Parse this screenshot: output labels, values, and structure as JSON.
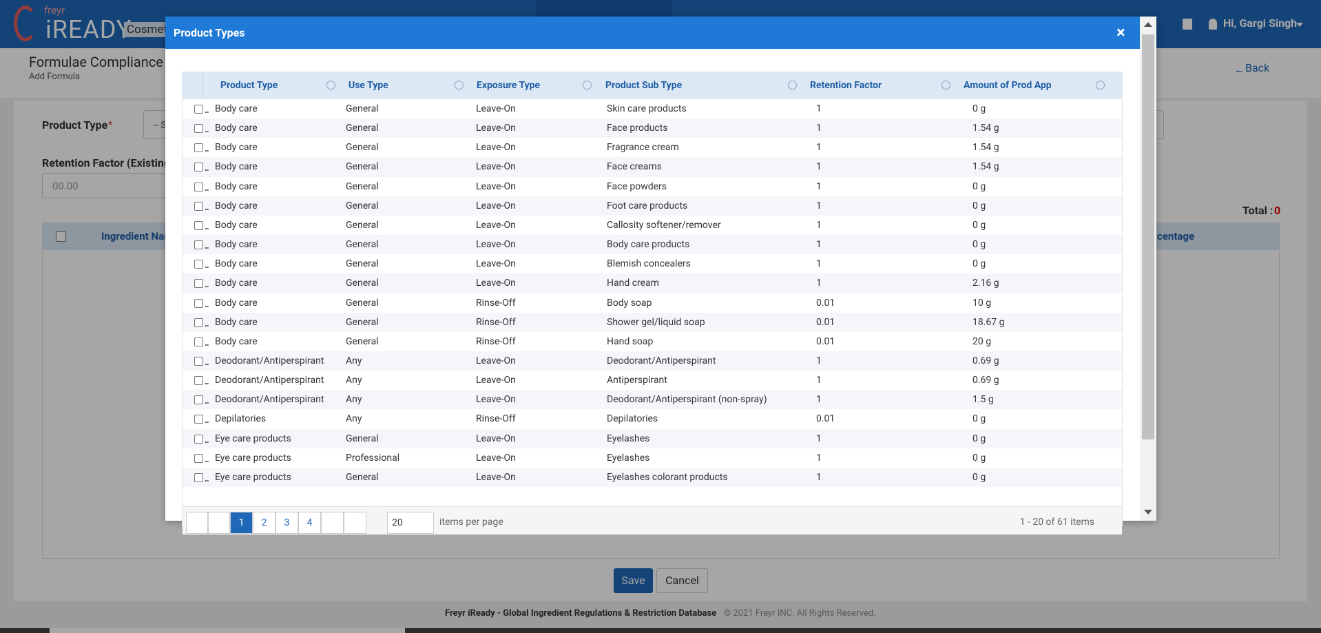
{
  "nav": {
    "brand_small": "freyr",
    "brand": "iREADY",
    "module": "Cosmet",
    "user": "Hi, Gargi Singh"
  },
  "page": {
    "title": "Formulae Compliance",
    "subtitle": "Add Formula",
    "back": "Back",
    "product_type_label": "Product Type",
    "required": "*",
    "product_type_placeholder": "-- S",
    "retention_label": "Retention Factor (Existing",
    "retention_placeholder": "00.00",
    "total_label": "Total :",
    "total_value": "0",
    "columns": [
      "Ingredient Nam",
      "centage"
    ],
    "save": "Save",
    "cancel": "Cancel"
  },
  "footer": {
    "brand": "Freyr iReady - Global Ingredient Regulations & Restriction Database",
    "copyright": "© 2021 Freyr INC. All Rights Reserved."
  },
  "modal": {
    "title": "Product Types",
    "close": "×",
    "table": {
      "columns": [
        "Product Type",
        "Use Type",
        "Exposure Type",
        "Product Sub Type",
        "Retention Factor",
        "Amount of Prod App"
      ],
      "rows": [
        [
          "Body care",
          "General",
          "Leave-On",
          "Skin care products",
          "1",
          "0 g"
        ],
        [
          "Body care",
          "General",
          "Leave-On",
          "Face products",
          "1",
          "1.54 g"
        ],
        [
          "Body care",
          "General",
          "Leave-On",
          "Fragrance cream",
          "1",
          "1.54 g"
        ],
        [
          "Body care",
          "General",
          "Leave-On",
          "Face creams",
          "1",
          "1.54 g"
        ],
        [
          "Body care",
          "General",
          "Leave-On",
          "Face powders",
          "1",
          "0 g"
        ],
        [
          "Body care",
          "General",
          "Leave-On",
          "Foot care products",
          "1",
          "0 g"
        ],
        [
          "Body care",
          "General",
          "Leave-On",
          "Callosity softener/remover",
          "1",
          "0 g"
        ],
        [
          "Body care",
          "General",
          "Leave-On",
          "Body care products",
          "1",
          "0 g"
        ],
        [
          "Body care",
          "General",
          "Leave-On",
          "Blemish concealers",
          "1",
          "0 g"
        ],
        [
          "Body care",
          "General",
          "Leave-On",
          "Hand cream",
          "1",
          "2.16 g"
        ],
        [
          "Body care",
          "General",
          "Rinse-Off",
          "Body soap",
          "0.01",
          "10 g"
        ],
        [
          "Body care",
          "General",
          "Rinse-Off",
          "Shower gel/liquid soap",
          "0.01",
          "18.67 g"
        ],
        [
          "Body care",
          "General",
          "Rinse-Off",
          "Hand soap",
          "0.01",
          "20 g"
        ],
        [
          "Deodorant/Antiperspirant",
          "Any",
          "Leave-On",
          "Deodorant/Antiperspirant",
          "1",
          "0.69 g"
        ],
        [
          "Deodorant/Antiperspirant",
          "Any",
          "Leave-On",
          "Antiperspirant",
          "1",
          "0.69 g"
        ],
        [
          "Deodorant/Antiperspirant",
          "Any",
          "Leave-On",
          "Deodorant/Antiperspirant (non-spray)",
          "1",
          "1.5 g"
        ],
        [
          "Depilatories",
          "Any",
          "Rinse-Off",
          "Depilatories",
          "0.01",
          "0 g"
        ],
        [
          "Eye care products",
          "General",
          "Leave-On",
          "Eyelashes",
          "1",
          "0 g"
        ],
        [
          "Eye care products",
          "Professional",
          "Leave-On",
          "Eyelashes",
          "1",
          "0 g"
        ],
        [
          "Eye care products",
          "General",
          "Leave-On",
          "Eyelashes colorant products",
          "1",
          "0 g"
        ]
      ]
    },
    "pagination": {
      "pages": [
        "1",
        "2",
        "3",
        "4"
      ],
      "page_size": "20",
      "page_size_label": "items per page",
      "summary": "1 - 20 of 61 items"
    }
  }
}
